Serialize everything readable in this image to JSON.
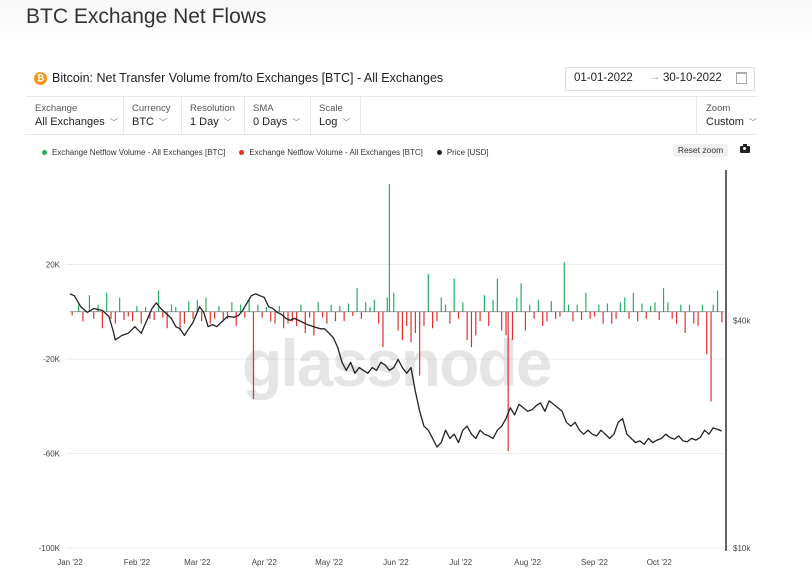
{
  "page": {
    "title": "BTC Exchange Net Flows"
  },
  "header": {
    "asset_icon": "bitcoin-icon",
    "chart_title": "Bitcoin: Net Transfer Volume from/to Exchanges [BTC] - All Exchanges",
    "date_from": "01-01-2022",
    "date_arrow": "→",
    "date_to": "30-10-2022",
    "calendar_icon": "calendar-icon"
  },
  "controls": {
    "exchange": {
      "label": "Exchange",
      "value": "All Exchanges"
    },
    "currency": {
      "label": "Currency",
      "value": "BTC"
    },
    "resolution": {
      "label": "Resolution",
      "value": "1 Day"
    },
    "sma": {
      "label": "SMA",
      "value": "0 Days"
    },
    "scale": {
      "label": "Scale",
      "value": "Log"
    },
    "zoom": {
      "label": "Zoom",
      "value": "Custom"
    }
  },
  "toolbar": {
    "reset_zoom": "Reset zoom",
    "camera_icon": "camera-icon"
  },
  "watermark": "glassnode",
  "colors": {
    "inflow": "#27ae60",
    "outflow": "#e0302b",
    "price": "#222222",
    "brand_orange": "#f7931a"
  },
  "chart_data": {
    "type": "bar",
    "legend_position": "top-left",
    "legend": [
      {
        "name": "Exchange Netflow Volume - All Exchanges [BTC]",
        "color": "#27ae60"
      },
      {
        "name": "Exchange Netflow Volume - All Exchanges [BTC]",
        "color": "#e0302b"
      },
      {
        "name": "Price [USD]",
        "color": "#222222"
      }
    ],
    "x_ticks": [
      "Jan '22",
      "Feb '22",
      "Mar '22",
      "Apr '22",
      "May '22",
      "Jun '22",
      "Jul '22",
      "Aug '22",
      "Sep '22",
      "Oct '22"
    ],
    "y_left": {
      "ticks": [
        "20K",
        "-20K",
        "-60K",
        "-100K"
      ],
      "tick_values": [
        20000,
        -20000,
        -60000,
        -100000
      ],
      "range": [
        -100000,
        60000
      ]
    },
    "y_right": {
      "ticks": [
        "$40k",
        "$10k"
      ],
      "tick_values": [
        40000,
        10000
      ],
      "scale": "log",
      "range": [
        10000,
        100000
      ]
    },
    "grid": true,
    "x_range_days": [
      0,
      303
    ],
    "netflow_bars": [
      {
        "day": 1,
        "value": -1500
      },
      {
        "day": 4,
        "value": 3000
      },
      {
        "day": 6,
        "value": -4000
      },
      {
        "day": 9,
        "value": 7000
      },
      {
        "day": 11,
        "value": -3000
      },
      {
        "day": 13,
        "value": 3000
      },
      {
        "day": 15,
        "value": -7000
      },
      {
        "day": 17,
        "value": 8000
      },
      {
        "day": 19,
        "value": -3000
      },
      {
        "day": 21,
        "value": -5000
      },
      {
        "day": 23,
        "value": 6000
      },
      {
        "day": 25,
        "value": -3500
      },
      {
        "day": 27,
        "value": -2000
      },
      {
        "day": 29,
        "value": -4000
      },
      {
        "day": 31,
        "value": 2500
      },
      {
        "day": 33,
        "value": -5000
      },
      {
        "day": 35,
        "value": 2000
      },
      {
        "day": 37,
        "value": -3000
      },
      {
        "day": 39,
        "value": -3500
      },
      {
        "day": 41,
        "value": 9000
      },
      {
        "day": 43,
        "value": -2500
      },
      {
        "day": 45,
        "value": -7000
      },
      {
        "day": 47,
        "value": 3000
      },
      {
        "day": 49,
        "value": 2000
      },
      {
        "day": 51,
        "value": -8000
      },
      {
        "day": 53,
        "value": -5000
      },
      {
        "day": 55,
        "value": 4500
      },
      {
        "day": 57,
        "value": -3000
      },
      {
        "day": 59,
        "value": 5000
      },
      {
        "day": 61,
        "value": -4000
      },
      {
        "day": 63,
        "value": 6000
      },
      {
        "day": 65,
        "value": -5000
      },
      {
        "day": 67,
        "value": -3000
      },
      {
        "day": 69,
        "value": 2500
      },
      {
        "day": 71,
        "value": -4000
      },
      {
        "day": 73,
        "value": -3000
      },
      {
        "day": 75,
        "value": 4000
      },
      {
        "day": 77,
        "value": -6000
      },
      {
        "day": 79,
        "value": 3000
      },
      {
        "day": 81,
        "value": -2500
      },
      {
        "day": 83,
        "value": 5000
      },
      {
        "day": 85,
        "value": -37000
      },
      {
        "day": 87,
        "value": 3000
      },
      {
        "day": 89,
        "value": -2500
      },
      {
        "day": 91,
        "value": 2000
      },
      {
        "day": 93,
        "value": -4000
      },
      {
        "day": 95,
        "value": -5000
      },
      {
        "day": 97,
        "value": 2500
      },
      {
        "day": 99,
        "value": -7000
      },
      {
        "day": 101,
        "value": -5000
      },
      {
        "day": 103,
        "value": -4000
      },
      {
        "day": 105,
        "value": -6000
      },
      {
        "day": 107,
        "value": 3000
      },
      {
        "day": 109,
        "value": -9000
      },
      {
        "day": 111,
        "value": -2500
      },
      {
        "day": 113,
        "value": -10000
      },
      {
        "day": 115,
        "value": 4000
      },
      {
        "day": 117,
        "value": -2500
      },
      {
        "day": 119,
        "value": -5000
      },
      {
        "day": 121,
        "value": 3000
      },
      {
        "day": 123,
        "value": -4000
      },
      {
        "day": 125,
        "value": 2500
      },
      {
        "day": 127,
        "value": -4000
      },
      {
        "day": 129,
        "value": 3500
      },
      {
        "day": 131,
        "value": -1800
      },
      {
        "day": 133,
        "value": 10000
      },
      {
        "day": 135,
        "value": -3000
      },
      {
        "day": 137,
        "value": 4000
      },
      {
        "day": 139,
        "value": 2000
      },
      {
        "day": 141,
        "value": 5000
      },
      {
        "day": 143,
        "value": -5000
      },
      {
        "day": 145,
        "value": -15000
      },
      {
        "day": 147,
        "value": 6000
      },
      {
        "day": 148,
        "value": 54000
      },
      {
        "day": 150,
        "value": 8000
      },
      {
        "day": 152,
        "value": -8000
      },
      {
        "day": 154,
        "value": -12000
      },
      {
        "day": 156,
        "value": -6000
      },
      {
        "day": 158,
        "value": -13000
      },
      {
        "day": 160,
        "value": -9000
      },
      {
        "day": 162,
        "value": -27000
      },
      {
        "day": 164,
        "value": -6000
      },
      {
        "day": 166,
        "value": 16000
      },
      {
        "day": 168,
        "value": -7000
      },
      {
        "day": 170,
        "value": -4000
      },
      {
        "day": 172,
        "value": 6000
      },
      {
        "day": 174,
        "value": 3000
      },
      {
        "day": 176,
        "value": -5000
      },
      {
        "day": 178,
        "value": 14000
      },
      {
        "day": 180,
        "value": -3000
      },
      {
        "day": 182,
        "value": 4000
      },
      {
        "day": 184,
        "value": -12000
      },
      {
        "day": 186,
        "value": -15000
      },
      {
        "day": 188,
        "value": -10000
      },
      {
        "day": 190,
        "value": -4000
      },
      {
        "day": 192,
        "value": 7000
      },
      {
        "day": 194,
        "value": -6000
      },
      {
        "day": 196,
        "value": 5000
      },
      {
        "day": 198,
        "value": 14000
      },
      {
        "day": 200,
        "value": -8000
      },
      {
        "day": 202,
        "value": -10000
      },
      {
        "day": 203,
        "value": -59000
      },
      {
        "day": 205,
        "value": -12000
      },
      {
        "day": 207,
        "value": 6000
      },
      {
        "day": 209,
        "value": 12000
      },
      {
        "day": 211,
        "value": -8000
      },
      {
        "day": 213,
        "value": 3000
      },
      {
        "day": 215,
        "value": -3000
      },
      {
        "day": 217,
        "value": 5000
      },
      {
        "day": 219,
        "value": -6000
      },
      {
        "day": 221,
        "value": -4000
      },
      {
        "day": 223,
        "value": 4500
      },
      {
        "day": 225,
        "value": -3000
      },
      {
        "day": 227,
        "value": -2000
      },
      {
        "day": 229,
        "value": 21000
      },
      {
        "day": 231,
        "value": 3000
      },
      {
        "day": 233,
        "value": -4000
      },
      {
        "day": 235,
        "value": 3000
      },
      {
        "day": 237,
        "value": -3500
      },
      {
        "day": 239,
        "value": 8000
      },
      {
        "day": 241,
        "value": -3000
      },
      {
        "day": 243,
        "value": -2000
      },
      {
        "day": 245,
        "value": 3000
      },
      {
        "day": 247,
        "value": -5000
      },
      {
        "day": 249,
        "value": 3500
      },
      {
        "day": 251,
        "value": -5000
      },
      {
        "day": 253,
        "value": -3000
      },
      {
        "day": 255,
        "value": 4000
      },
      {
        "day": 257,
        "value": 6000
      },
      {
        "day": 259,
        "value": -3000
      },
      {
        "day": 261,
        "value": 8000
      },
      {
        "day": 263,
        "value": -4000
      },
      {
        "day": 265,
        "value": 3500
      },
      {
        "day": 267,
        "value": -3000
      },
      {
        "day": 269,
        "value": 2500
      },
      {
        "day": 271,
        "value": 4000
      },
      {
        "day": 273,
        "value": -3500
      },
      {
        "day": 275,
        "value": 10000
      },
      {
        "day": 277,
        "value": 4000
      },
      {
        "day": 279,
        "value": -3000
      },
      {
        "day": 281,
        "value": -5000
      },
      {
        "day": 283,
        "value": 3000
      },
      {
        "day": 285,
        "value": -9000
      },
      {
        "day": 287,
        "value": 3000
      },
      {
        "day": 289,
        "value": -5000
      },
      {
        "day": 291,
        "value": -6000
      },
      {
        "day": 293,
        "value": 3000
      },
      {
        "day": 295,
        "value": -18000
      },
      {
        "day": 297,
        "value": -38000
      },
      {
        "day": 298,
        "value": 3000
      },
      {
        "day": 300,
        "value": 9000
      },
      {
        "day": 302,
        "value": -4500
      }
    ],
    "price_usd": [
      {
        "day": 0,
        "value": 47000
      },
      {
        "day": 2,
        "value": 46500
      },
      {
        "day": 5,
        "value": 43500
      },
      {
        "day": 8,
        "value": 42000
      },
      {
        "day": 11,
        "value": 43000
      },
      {
        "day": 15,
        "value": 42500
      },
      {
        "day": 18,
        "value": 41000
      },
      {
        "day": 20,
        "value": 37500
      },
      {
        "day": 21,
        "value": 35500
      },
      {
        "day": 24,
        "value": 36500
      },
      {
        "day": 27,
        "value": 37000
      },
      {
        "day": 30,
        "value": 38500
      },
      {
        "day": 33,
        "value": 37000
      },
      {
        "day": 36,
        "value": 40500
      },
      {
        "day": 38,
        "value": 43000
      },
      {
        "day": 40,
        "value": 44500
      },
      {
        "day": 42,
        "value": 43000
      },
      {
        "day": 44,
        "value": 42000
      },
      {
        "day": 47,
        "value": 40500
      },
      {
        "day": 49,
        "value": 38500
      },
      {
        "day": 51,
        "value": 38000
      },
      {
        "day": 53,
        "value": 36500
      },
      {
        "day": 55,
        "value": 38000
      },
      {
        "day": 57,
        "value": 39500
      },
      {
        "day": 60,
        "value": 43500
      },
      {
        "day": 62,
        "value": 42000
      },
      {
        "day": 64,
        "value": 38500
      },
      {
        "day": 66,
        "value": 39000
      },
      {
        "day": 68,
        "value": 38500
      },
      {
        "day": 70,
        "value": 39500
      },
      {
        "day": 73,
        "value": 41000
      },
      {
        "day": 76,
        "value": 40800
      },
      {
        "day": 78,
        "value": 41200
      },
      {
        "day": 80,
        "value": 42500
      },
      {
        "day": 82,
        "value": 44500
      },
      {
        "day": 84,
        "value": 46500
      },
      {
        "day": 86,
        "value": 47000
      },
      {
        "day": 88,
        "value": 46500
      },
      {
        "day": 90,
        "value": 46000
      },
      {
        "day": 92,
        "value": 43500
      },
      {
        "day": 94,
        "value": 43000
      },
      {
        "day": 96,
        "value": 42000
      },
      {
        "day": 98,
        "value": 41500
      },
      {
        "day": 100,
        "value": 40500
      },
      {
        "day": 102,
        "value": 40000
      },
      {
        "day": 104,
        "value": 40500
      },
      {
        "day": 106,
        "value": 40000
      },
      {
        "day": 108,
        "value": 39500
      },
      {
        "day": 110,
        "value": 39000
      },
      {
        "day": 113,
        "value": 38500
      },
      {
        "day": 116,
        "value": 38000
      },
      {
        "day": 118,
        "value": 38000
      },
      {
        "day": 120,
        "value": 37000
      },
      {
        "day": 122,
        "value": 36000
      },
      {
        "day": 124,
        "value": 34000
      },
      {
        "day": 126,
        "value": 31000
      },
      {
        "day": 128,
        "value": 29500
      },
      {
        "day": 130,
        "value": 31000
      },
      {
        "day": 132,
        "value": 29000
      },
      {
        "day": 134,
        "value": 30000
      },
      {
        "day": 136,
        "value": 29500
      },
      {
        "day": 138,
        "value": 29000
      },
      {
        "day": 140,
        "value": 30000
      },
      {
        "day": 142,
        "value": 29500
      },
      {
        "day": 144,
        "value": 31000
      },
      {
        "day": 146,
        "value": 30500
      },
      {
        "day": 148,
        "value": 29500
      },
      {
        "day": 150,
        "value": 30000
      },
      {
        "day": 152,
        "value": 31500
      },
      {
        "day": 154,
        "value": 30000
      },
      {
        "day": 156,
        "value": 29000
      },
      {
        "day": 158,
        "value": 30000
      },
      {
        "day": 160,
        "value": 26000
      },
      {
        "day": 162,
        "value": 23000
      },
      {
        "day": 164,
        "value": 21000
      },
      {
        "day": 166,
        "value": 20500
      },
      {
        "day": 168,
        "value": 19500
      },
      {
        "day": 170,
        "value": 18500
      },
      {
        "day": 172,
        "value": 19000
      },
      {
        "day": 174,
        "value": 20500
      },
      {
        "day": 176,
        "value": 19500
      },
      {
        "day": 178,
        "value": 20000
      },
      {
        "day": 180,
        "value": 19000
      },
      {
        "day": 182,
        "value": 20500
      },
      {
        "day": 184,
        "value": 21000
      },
      {
        "day": 186,
        "value": 20000
      },
      {
        "day": 188,
        "value": 19500
      },
      {
        "day": 190,
        "value": 20500
      },
      {
        "day": 192,
        "value": 20000
      },
      {
        "day": 194,
        "value": 19800
      },
      {
        "day": 196,
        "value": 19500
      },
      {
        "day": 198,
        "value": 20500
      },
      {
        "day": 200,
        "value": 21000
      },
      {
        "day": 202,
        "value": 22000
      },
      {
        "day": 204,
        "value": 23500
      },
      {
        "day": 206,
        "value": 22500
      },
      {
        "day": 208,
        "value": 24000
      },
      {
        "day": 210,
        "value": 23500
      },
      {
        "day": 212,
        "value": 23000
      },
      {
        "day": 214,
        "value": 23200
      },
      {
        "day": 216,
        "value": 23800
      },
      {
        "day": 218,
        "value": 24200
      },
      {
        "day": 220,
        "value": 23000
      },
      {
        "day": 222,
        "value": 24500
      },
      {
        "day": 224,
        "value": 24000
      },
      {
        "day": 226,
        "value": 23500
      },
      {
        "day": 228,
        "value": 23000
      },
      {
        "day": 230,
        "value": 21500
      },
      {
        "day": 232,
        "value": 21000
      },
      {
        "day": 234,
        "value": 21500
      },
      {
        "day": 236,
        "value": 20500
      },
      {
        "day": 238,
        "value": 20000
      },
      {
        "day": 240,
        "value": 20500
      },
      {
        "day": 242,
        "value": 20000
      },
      {
        "day": 244,
        "value": 19800
      },
      {
        "day": 246,
        "value": 20500
      },
      {
        "day": 248,
        "value": 20000
      },
      {
        "day": 250,
        "value": 19500
      },
      {
        "day": 252,
        "value": 20000
      },
      {
        "day": 254,
        "value": 21500
      },
      {
        "day": 256,
        "value": 22000
      },
      {
        "day": 258,
        "value": 20000
      },
      {
        "day": 260,
        "value": 19500
      },
      {
        "day": 262,
        "value": 19000
      },
      {
        "day": 264,
        "value": 19200
      },
      {
        "day": 266,
        "value": 18800
      },
      {
        "day": 268,
        "value": 19500
      },
      {
        "day": 270,
        "value": 19000
      },
      {
        "day": 272,
        "value": 19300
      },
      {
        "day": 274,
        "value": 19500
      },
      {
        "day": 276,
        "value": 20000
      },
      {
        "day": 278,
        "value": 19600
      },
      {
        "day": 280,
        "value": 19400
      },
      {
        "day": 282,
        "value": 19800
      },
      {
        "day": 284,
        "value": 19200
      },
      {
        "day": 286,
        "value": 19100
      },
      {
        "day": 288,
        "value": 19500
      },
      {
        "day": 290,
        "value": 19300
      },
      {
        "day": 292,
        "value": 19600
      },
      {
        "day": 294,
        "value": 20500
      },
      {
        "day": 296,
        "value": 20000
      },
      {
        "day": 298,
        "value": 20800
      },
      {
        "day": 300,
        "value": 20600
      },
      {
        "day": 302,
        "value": 20400
      }
    ]
  }
}
